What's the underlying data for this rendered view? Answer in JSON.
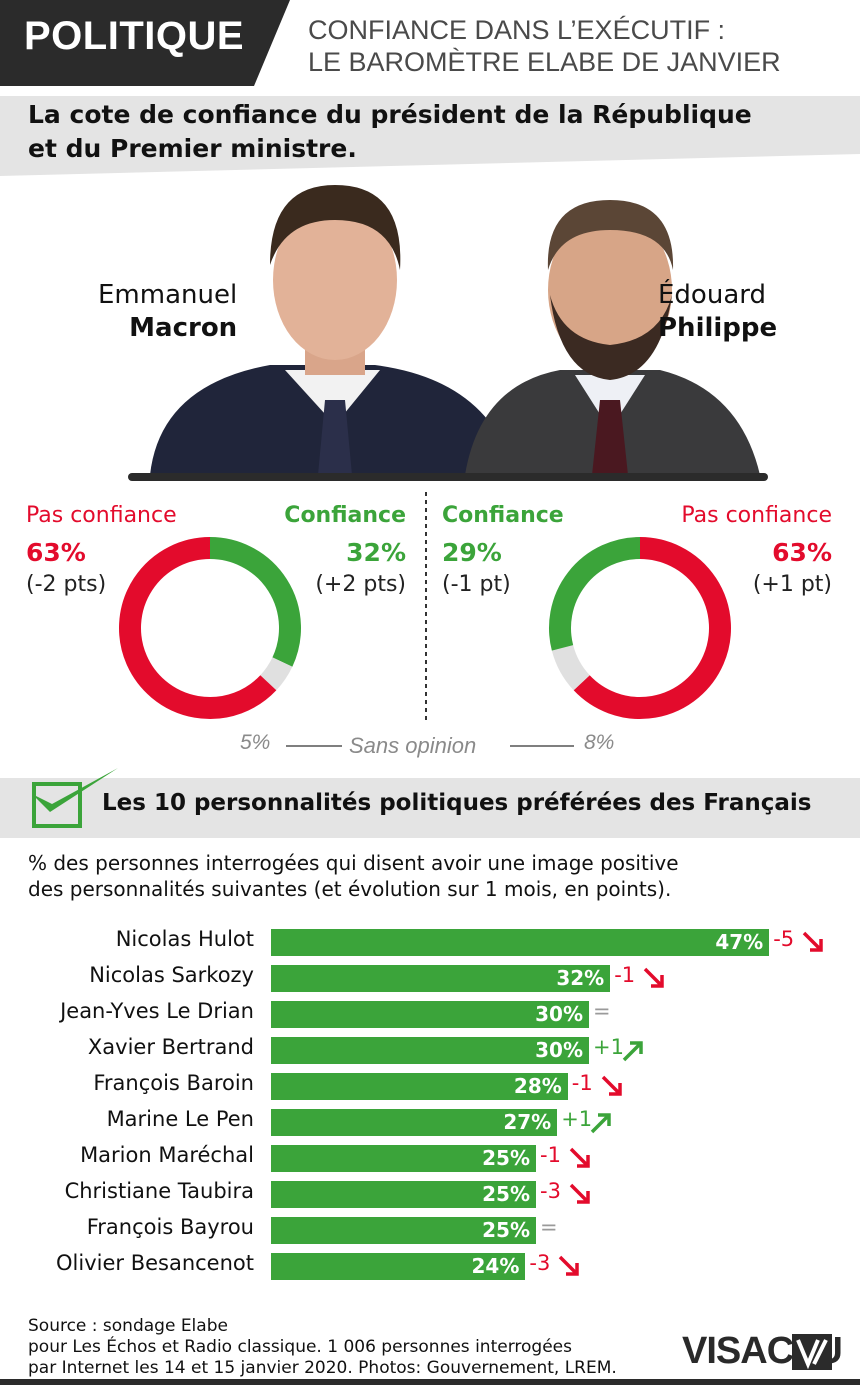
{
  "header": {
    "tag": "POLITIQUE",
    "title_line1": "CONFIANCE DANS L’EXÉCUTIF :",
    "title_line2": "LE BAROMÈTRE ELABE DE JANVIER"
  },
  "section1": {
    "title_line1": "La cote de confiance du président de la République",
    "title_line2": "et du Premier ministre."
  },
  "people": [
    {
      "first": "Emmanuel",
      "last": "Macron",
      "pas_confiance_label": "Pas confiance",
      "pas_confiance_value": "63%",
      "pas_confiance_change": "(-2 pts)",
      "confiance_label": "Confiance",
      "confiance_value": "32%",
      "confiance_change": "(+2 pts)",
      "sans_opinion": "5%"
    },
    {
      "first": "Édouard",
      "last": "Philippe",
      "pas_confiance_label": "Pas confiance",
      "pas_confiance_value": "63%",
      "pas_confiance_change": "(+1 pt)",
      "confiance_label": "Confiance",
      "confiance_value": "29%",
      "confiance_change": "(-1 pt)",
      "sans_opinion": "8%"
    }
  ],
  "sans_opinion_label": "Sans opinion",
  "section2": {
    "title": "Les 10 personnalités politiques préférées des Français",
    "desc_line1": "% des personnes interrogées qui disent avoir une image positive",
    "desc_line2": "des personnalités suivantes (et évolution sur 1 mois, en points)."
  },
  "colors": {
    "red": "#e30b2c",
    "green": "#3ba43a",
    "grey": "#e0e0e0",
    "dark": "#2b2b2b"
  },
  "chart_data": [
    {
      "type": "pie",
      "categories": [
        "Pas confiance",
        "Confiance",
        "Sans opinion"
      ],
      "values": [
        63,
        32,
        5
      ]
    },
    {
      "type": "pie",
      "categories": [
        "Confiance",
        "Pas confiance",
        "Sans opinion"
      ],
      "values": [
        29,
        63,
        8
      ]
    },
    {
      "type": "bar",
      "orientation": "horizontal",
      "categories": [
        "Nicolas Hulot",
        "Nicolas Sarkozy",
        "Jean-Yves Le Drian",
        "Xavier Bertrand",
        "François Baroin",
        "Marine Le Pen",
        "Marion Maréchal",
        "Christiane Taubira",
        "François Bayrou",
        "Olivier Besancenot"
      ],
      "values": [
        47,
        32,
        30,
        30,
        28,
        27,
        25,
        25,
        25,
        24
      ],
      "labels": [
        "47%",
        "32%",
        "30%",
        "30%",
        "28%",
        "27%",
        "25%",
        "25%",
        "25%",
        "24%"
      ],
      "changes": [
        "-5",
        "-1",
        "=",
        "+1",
        "-1",
        "+1",
        "-1",
        "-3",
        "=",
        "-3"
      ],
      "trend": [
        "down",
        "down",
        "flat",
        "up",
        "down",
        "up",
        "down",
        "down",
        "flat",
        "down"
      ]
    }
  ],
  "footer": {
    "line1": "Source : sondage Elabe",
    "line2": "pour Les Échos et Radio classique. 1 006 personnes interrogées",
    "line3": "par Internet les 14 et 15 janvier 2020. Photos: Gouvernement, LREM.",
    "logo": "VISACTU"
  }
}
